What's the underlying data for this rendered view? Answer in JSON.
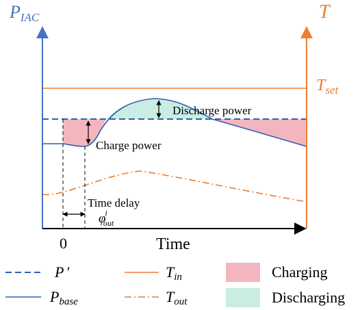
{
  "axes": {
    "left_label": {
      "main": "P",
      "sub": "IAC"
    },
    "right_label": "T",
    "x_label": "Time",
    "origin_label": "0"
  },
  "annotations": {
    "t_set": {
      "main": "T",
      "sub": "set"
    },
    "discharge_power": "Discharge power",
    "charge_power": "Charge power",
    "time_delay": "Time delay",
    "phi": {
      "main": "φ",
      "sup": "i",
      "sub": "out"
    }
  },
  "legend": {
    "p_prime": {
      "main": "P",
      "suffix": "′"
    },
    "p_base": {
      "main": "P",
      "sub": "base"
    },
    "t_in": {
      "main": "T",
      "sub": "in"
    },
    "t_out": {
      "main": "T",
      "sub": "out"
    },
    "charging": "Charging",
    "discharging": "Discharging"
  },
  "colors": {
    "blue_axis": "#4472C4",
    "blue_line": "#2F5DB5",
    "orange": "#ED7D31",
    "charging_fill": "#F4B6BE",
    "discharging_fill": "#C9EDE3",
    "black": "#000000"
  }
}
